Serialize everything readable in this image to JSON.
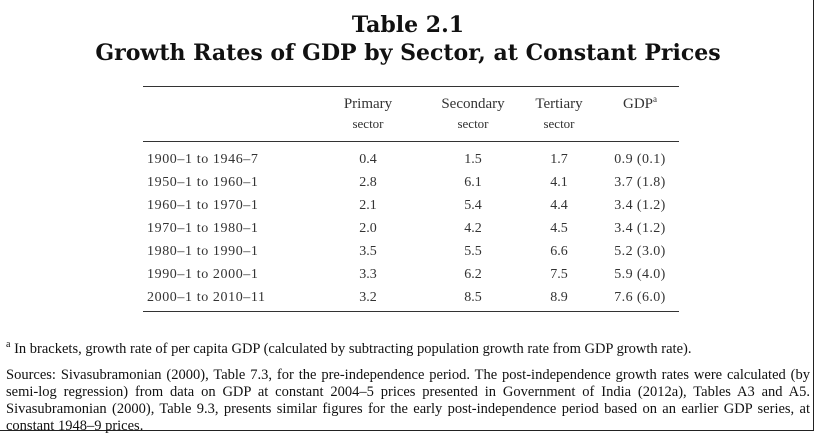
{
  "title": {
    "line1": "Table 2.1",
    "line2": "Growth Rates of GDP by Sector, at Constant Prices"
  },
  "table": {
    "headers": [
      {
        "label": "Primary",
        "sub": "sector"
      },
      {
        "label": "Secondary",
        "sub": "sector"
      },
      {
        "label": "Tertiary",
        "sub": "sector"
      },
      {
        "label": "GDP",
        "sub": "",
        "mark": "a"
      }
    ],
    "rows": [
      {
        "period": "1900–1 to 1946–7",
        "primary": "0.4",
        "secondary": "1.5",
        "tertiary": "1.7",
        "gdp": "0.9 (0.1)"
      },
      {
        "period": "1950–1 to 1960–1",
        "primary": "2.8",
        "secondary": "6.1",
        "tertiary": "4.1",
        "gdp": "3.7 (1.8)"
      },
      {
        "period": "1960–1 to 1970–1",
        "primary": "2.1",
        "secondary": "5.4",
        "tertiary": "4.4",
        "gdp": "3.4 (1.2)"
      },
      {
        "period": "1970–1 to 1980–1",
        "primary": "2.0",
        "secondary": "4.2",
        "tertiary": "4.5",
        "gdp": "3.4 (1.2)"
      },
      {
        "period": "1980–1 to 1990–1",
        "primary": "3.5",
        "secondary": "5.5",
        "tertiary": "6.6",
        "gdp": "5.2 (3.0)"
      },
      {
        "period": "1990–1 to 2000–1",
        "primary": "3.3",
        "secondary": "6.2",
        "tertiary": "7.5",
        "gdp": "5.9 (4.0)"
      },
      {
        "period": "2000–1 to 2010–11",
        "primary": "3.2",
        "secondary": "8.5",
        "tertiary": "8.9",
        "gdp": "7.6 (6.0)"
      }
    ]
  },
  "notes": {
    "footnote_mark": "a",
    "footnote": " In brackets, growth rate of per capita GDP (calculated by subtracting population growth rate from GDP growth rate).",
    "sources": "Sources: Sivasubramonian (2000), Table 7.3, for the pre-independence period. The post-independence growth rates were calculated (by semi-log regression) from data on GDP at constant 2004–5 prices presented in Government of India (2012a), Tables A3 and A5. Sivasubramonian (2000), Table 9.3, presents similar figures for the early post-independence period based on an earlier GDP series, at constant 1948–9 prices."
  }
}
